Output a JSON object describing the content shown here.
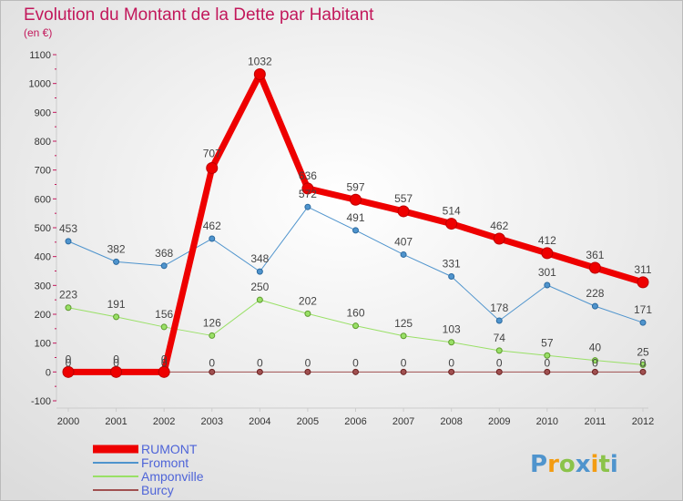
{
  "chart_data": {
    "type": "line",
    "title": "Evolution du Montant de la Dette par Habitant",
    "subtitle": "(en €)",
    "x": [
      "2000",
      "2001",
      "2002",
      "2003",
      "2004",
      "2005",
      "2006",
      "2007",
      "2008",
      "2009",
      "2010",
      "2011",
      "2012"
    ],
    "yticks": [
      -100,
      0,
      100,
      200,
      300,
      400,
      500,
      600,
      700,
      800,
      900,
      1000,
      1100
    ],
    "ylim": [
      -100,
      1100
    ],
    "grid": false,
    "legend_position": "bottom-left",
    "series": [
      {
        "name": "RUMONT",
        "color": "#ee0000",
        "values": [
          0,
          0,
          0,
          707,
          1032,
          636,
          597,
          557,
          514,
          462,
          412,
          361,
          311
        ]
      },
      {
        "name": "Fromont",
        "color": "#4f94cd",
        "values": [
          453,
          382,
          368,
          462,
          348,
          572,
          491,
          407,
          331,
          178,
          301,
          228,
          171
        ]
      },
      {
        "name": "Amponville",
        "color": "#99e066",
        "values": [
          223,
          191,
          156,
          126,
          250,
          202,
          160,
          125,
          103,
          74,
          57,
          40,
          25
        ]
      },
      {
        "name": "Burcy",
        "color": "#a05050",
        "values": [
          0,
          0,
          0,
          0,
          0,
          0,
          0,
          0,
          0,
          0,
          0,
          0,
          0
        ]
      }
    ]
  },
  "logo": {
    "text": "Proxiti"
  },
  "colors": {
    "title": "#c2185b",
    "legend_text": "#4e64d8",
    "axis": "#cccccc",
    "tick_mark": "#c2185b",
    "label_text": "#444444"
  }
}
